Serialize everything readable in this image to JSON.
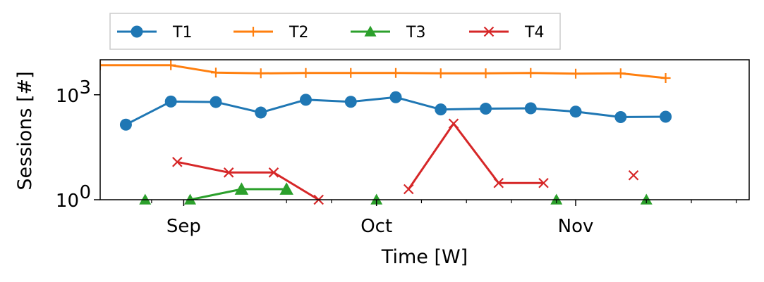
{
  "chart_data": {
    "type": "line",
    "title": "",
    "xlabel": "Time [W]",
    "ylabel": "Sessions [#]",
    "yscale": "log",
    "ylim": [
      1,
      10000
    ],
    "xlim": [
      "2023-08-19",
      "2023-11-28"
    ],
    "grid": false,
    "legend": {
      "placement": "top-left, above plot",
      "ncol": 4
    },
    "x_ticks": [
      {
        "date": "2023-09-01",
        "label": "Sep"
      },
      {
        "date": "2023-10-01",
        "label": "Oct"
      },
      {
        "date": "2023-11-01",
        "label": "Nov"
      }
    ],
    "x_minor_ticks": [
      "2023-08-27",
      "2023-09-17",
      "2023-09-24",
      "2023-10-08",
      "2023-10-15",
      "2023-10-22",
      "2023-10-29",
      "2023-11-12",
      "2023-11-19",
      "2023-11-26"
    ],
    "y_ticks": [
      {
        "value": 1,
        "base": "10",
        "exp": "0"
      },
      {
        "value": 1000,
        "base": "10",
        "exp": "3"
      }
    ],
    "series": [
      {
        "name": "T1",
        "color": "#1f77b4",
        "marker": "circle",
        "points": [
          {
            "x": "2023-08-23",
            "y": 140
          },
          {
            "x": "2023-08-30",
            "y": 640
          },
          {
            "x": "2023-09-06",
            "y": 620
          },
          {
            "x": "2023-09-13",
            "y": 310
          },
          {
            "x": "2023-09-20",
            "y": 720
          },
          {
            "x": "2023-09-27",
            "y": 630
          },
          {
            "x": "2023-10-04",
            "y": 850
          },
          {
            "x": "2023-10-11",
            "y": 380
          },
          {
            "x": "2023-10-18",
            "y": 400
          },
          {
            "x": "2023-10-25",
            "y": 410
          },
          {
            "x": "2023-11-01",
            "y": 330
          },
          {
            "x": "2023-11-08",
            "y": 230
          },
          {
            "x": "2023-11-15",
            "y": 235
          }
        ]
      },
      {
        "name": "T2",
        "color": "#ff7f0e",
        "marker": "plus",
        "points": [
          {
            "x": "2023-08-19",
            "y": 7000
          },
          {
            "x": "2023-08-30",
            "y": 7000
          },
          {
            "x": "2023-09-06",
            "y": 4300
          },
          {
            "x": "2023-09-13",
            "y": 4100
          },
          {
            "x": "2023-09-20",
            "y": 4200
          },
          {
            "x": "2023-09-27",
            "y": 4200
          },
          {
            "x": "2023-10-04",
            "y": 4200
          },
          {
            "x": "2023-10-11",
            "y": 4100
          },
          {
            "x": "2023-10-18",
            "y": 4100
          },
          {
            "x": "2023-10-25",
            "y": 4200
          },
          {
            "x": "2023-11-01",
            "y": 4000
          },
          {
            "x": "2023-11-08",
            "y": 4100
          },
          {
            "x": "2023-11-15",
            "y": 3000
          }
        ]
      },
      {
        "name": "T3",
        "color": "#2ca02c",
        "marker": "triangle",
        "points": [
          {
            "x": "2023-08-26",
            "y": 1
          },
          {
            "x": "2023-09-02",
            "y": 1
          },
          {
            "x": "2023-09-10",
            "y": 2
          },
          {
            "x": "2023-09-17",
            "y": 2
          },
          {
            "x": "2023-10-01",
            "y": 1
          },
          {
            "x": "2023-10-29",
            "y": 1
          },
          {
            "x": "2023-11-12",
            "y": 1
          }
        ],
        "segments": [
          [
            1,
            2,
            3
          ]
        ]
      },
      {
        "name": "T4",
        "color": "#d62728",
        "marker": "x",
        "points": [
          {
            "x": "2023-08-31",
            "y": 12
          },
          {
            "x": "2023-09-08",
            "y": 6
          },
          {
            "x": "2023-09-15",
            "y": 6
          },
          {
            "x": "2023-09-22",
            "y": 1
          },
          {
            "x": "2023-10-06",
            "y": 2
          },
          {
            "x": "2023-10-13",
            "y": 150
          },
          {
            "x": "2023-10-20",
            "y": 3
          },
          {
            "x": "2023-10-27",
            "y": 3
          },
          {
            "x": "2023-11-10",
            "y": 5
          }
        ],
        "segments": [
          [
            0,
            1,
            2,
            3
          ],
          [
            4,
            5,
            6,
            7
          ]
        ]
      }
    ]
  }
}
